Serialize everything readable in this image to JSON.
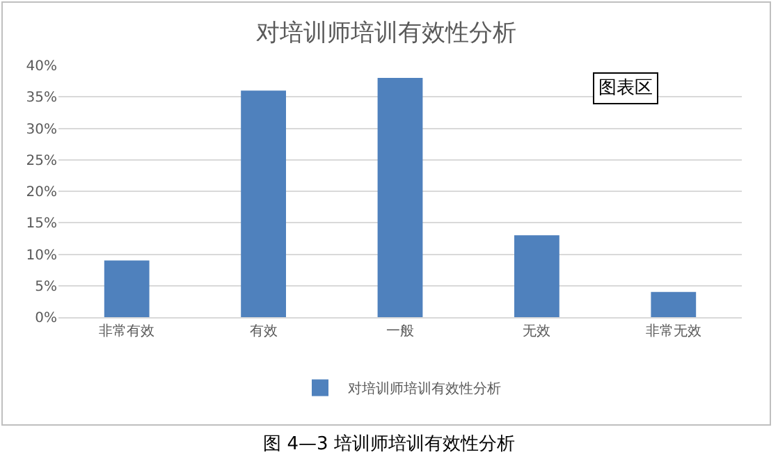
{
  "chart_data": {
    "type": "bar",
    "title": "对培训师培训有效性分析",
    "categories": [
      "非常有效",
      "有效",
      "一般",
      "无效",
      "非常无效"
    ],
    "series": [
      {
        "name": "对培训师培训有效性分析",
        "color": "#4f81bd",
        "values": [
          9,
          36,
          38,
          13,
          4
        ]
      }
    ],
    "ylim": [
      0,
      40
    ],
    "yticks": [
      {
        "value": 0,
        "label": "0%"
      },
      {
        "value": 5,
        "label": "5%"
      },
      {
        "value": 10,
        "label": "10%"
      },
      {
        "value": 15,
        "label": "15%"
      },
      {
        "value": 20,
        "label": "20%"
      },
      {
        "value": 25,
        "label": "25%"
      },
      {
        "value": 30,
        "label": "30%"
      },
      {
        "value": 35,
        "label": "35%"
      },
      {
        "value": 40,
        "label": "40%"
      }
    ],
    "grid": "y",
    "legend": "bottom",
    "annotations": [
      "图表区",
      "图 4—3 培训师培训有效性分析"
    ]
  }
}
